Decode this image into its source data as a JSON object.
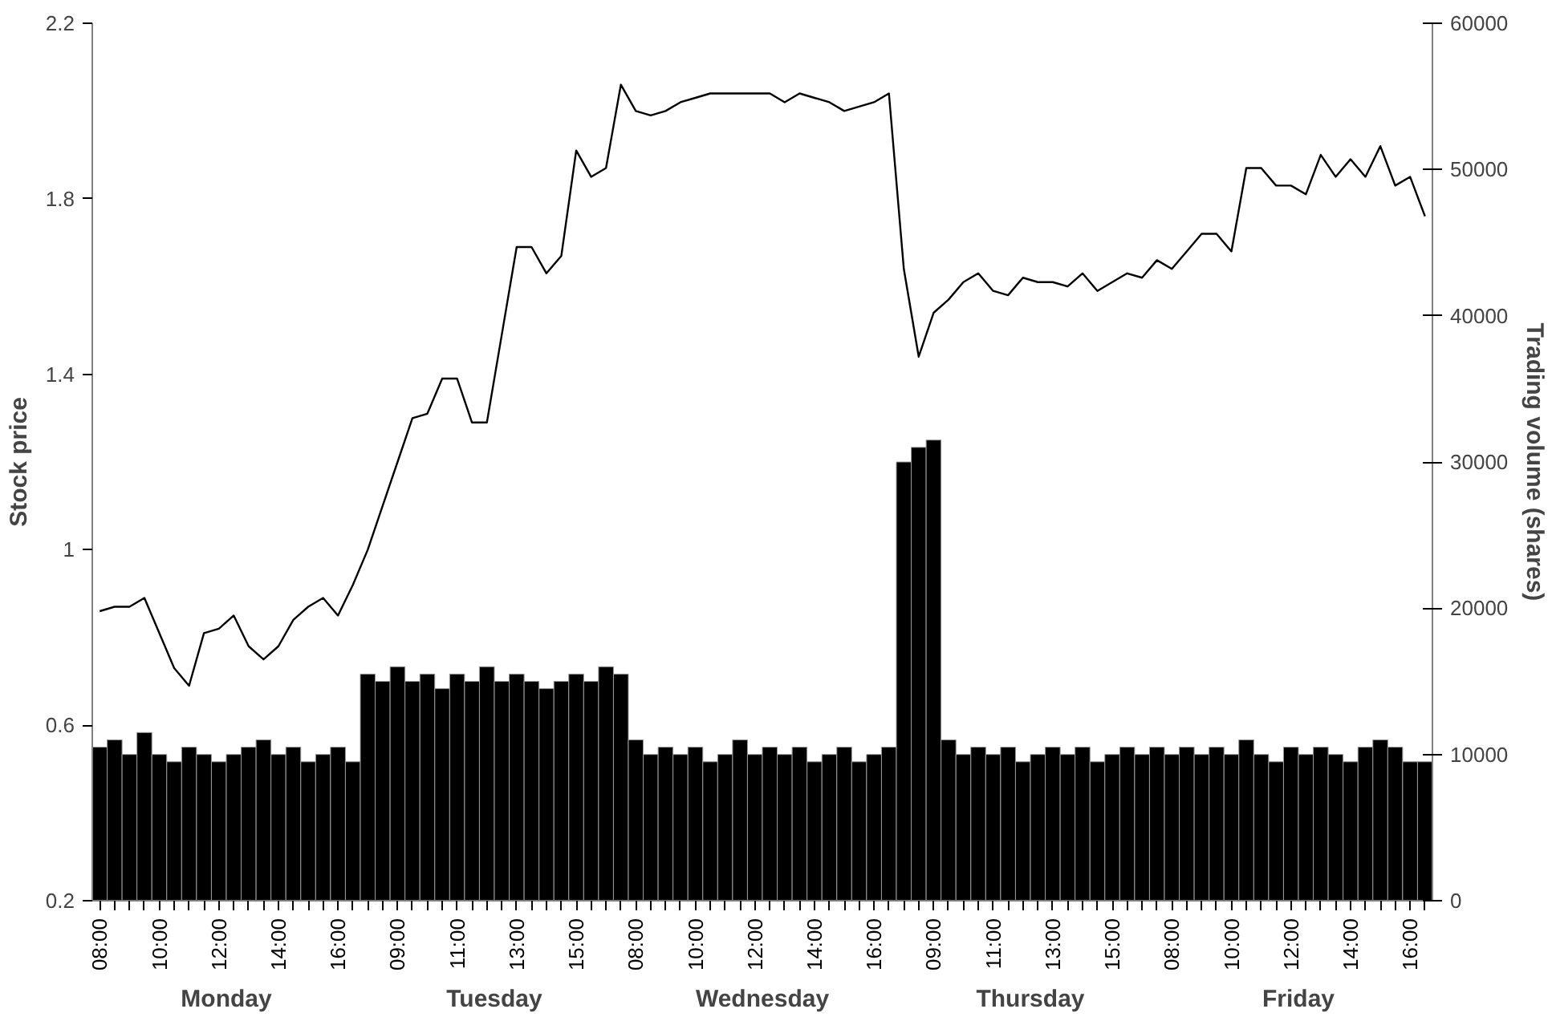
{
  "chart_data": {
    "type": "line",
    "categories": [
      "08:00",
      null,
      null,
      null,
      "10:00",
      null,
      null,
      null,
      "12:00",
      null,
      null,
      null,
      "14:00",
      null,
      null,
      null,
      "16:00",
      null,
      null,
      null,
      "09:00",
      null,
      null,
      null,
      "11:00",
      null,
      null,
      null,
      "13:00",
      null,
      null,
      null,
      "15:00",
      null,
      null,
      null,
      "08:00",
      null,
      null,
      null,
      "10:00",
      null,
      null,
      null,
      "12:00",
      null,
      null,
      null,
      "14:00",
      null,
      null,
      null,
      "16:00",
      null,
      null,
      null,
      "09:00",
      null,
      null,
      null,
      "11:00",
      null,
      null,
      null,
      "13:00",
      null,
      null,
      null,
      "15:00",
      null,
      null,
      null,
      "08:00",
      null,
      null,
      null,
      "10:00",
      null,
      null,
      null,
      "12:00",
      null,
      null,
      null,
      "14:00",
      null,
      null,
      null,
      "16:00",
      null
    ],
    "ylim": [
      0.2,
      2.2
    ],
    "yticks": [
      0.2,
      0.6,
      1,
      1.4,
      1.8,
      2.2
    ],
    "y2lim": [
      0,
      60000
    ],
    "y2ticks": [
      0,
      10000,
      20000,
      30000,
      40000,
      50000,
      60000
    ],
    "ylabel": "Stock price",
    "y2label": "Trading volume (shares)",
    "annotations": [
      "Monday",
      "Tuesday",
      "Wednesday",
      "Thursday",
      "Friday"
    ],
    "series": [
      {
        "type": "bar",
        "axis": "y2",
        "color": "#000000",
        "values": [
          10500,
          11000,
          10000,
          11500,
          10000,
          9500,
          10500,
          10000,
          9500,
          10000,
          10500,
          11000,
          10000,
          10500,
          9500,
          10000,
          10500,
          9500,
          15500,
          15000,
          16000,
          15000,
          15500,
          14500,
          15500,
          15000,
          16000,
          15000,
          15500,
          15000,
          14500,
          15000,
          15500,
          15000,
          16000,
          15500,
          11000,
          10000,
          10500,
          10000,
          10500,
          9500,
          10000,
          11000,
          10000,
          10500,
          10000,
          10500,
          9500,
          10000,
          10500,
          9500,
          10000,
          10500,
          30000,
          31000,
          31500,
          11000,
          10000,
          10500,
          10000,
          10500,
          9500,
          10000,
          10500,
          10000,
          10500,
          9500,
          10000,
          10500,
          10000,
          10500,
          10000,
          10500,
          10000,
          10500,
          10000,
          11000,
          10000,
          9500,
          10500,
          10000,
          10500,
          10000,
          9500,
          10500,
          11000,
          10500,
          9500,
          9500
        ]
      },
      {
        "color": "#000000",
        "values": [
          0.86,
          0.87,
          0.87,
          0.89,
          0.81,
          0.73,
          0.69,
          0.81,
          0.82,
          0.85,
          0.78,
          0.75,
          0.78,
          0.84,
          0.87,
          0.89,
          0.85,
          0.92,
          1.0,
          1.1,
          1.2,
          1.3,
          1.31,
          1.39,
          1.39,
          1.29,
          1.29,
          1.49,
          1.69,
          1.69,
          1.63,
          1.67,
          1.91,
          1.85,
          1.87,
          2.06,
          2.0,
          1.99,
          2.0,
          2.02,
          2.03,
          2.04,
          2.04,
          2.04,
          2.04,
          2.04,
          2.02,
          2.04,
          2.03,
          2.02,
          2.0,
          2.01,
          2.02,
          2.04,
          1.64,
          1.44,
          1.54,
          1.57,
          1.61,
          1.63,
          1.59,
          1.58,
          1.62,
          1.61,
          1.61,
          1.6,
          1.63,
          1.59,
          1.61,
          1.63,
          1.62,
          1.66,
          1.64,
          1.68,
          1.72,
          1.72,
          1.68,
          1.87,
          1.87,
          1.83,
          1.83,
          1.81,
          1.9,
          1.85,
          1.89,
          1.85,
          1.92,
          1.83,
          1.85,
          1.76
        ]
      }
    ]
  }
}
